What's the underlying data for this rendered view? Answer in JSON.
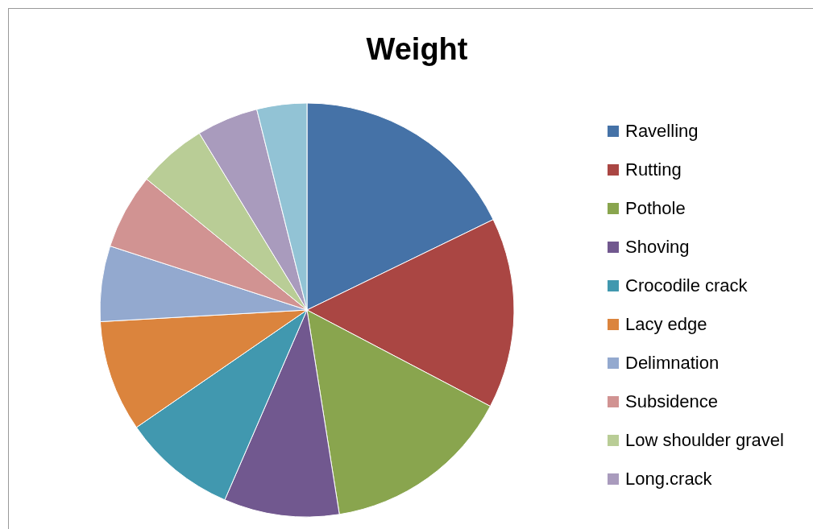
{
  "chart_data": {
    "type": "pie",
    "title": "Weight",
    "legend": "right",
    "categories": [
      "Ravelling",
      "Rutting",
      "Pothole",
      "Shoving",
      "Crocodile crack",
      "Lacy edge",
      "Delimnation",
      "Subsidence",
      "Low shoulder gravel",
      "Long.crack",
      null
    ],
    "values": [
      17.8,
      14.9,
      14.8,
      9.0,
      8.9,
      8.7,
      5.9,
      5.9,
      5.4,
      4.8,
      3.9
    ],
    "colors": [
      "#4572a7",
      "#aa4643",
      "#89a54e",
      "#71588f",
      "#4198af",
      "#db843d",
      "#93a9cf",
      "#d19392",
      "#b9cd96",
      "#a99bbd",
      "#92c3d5"
    ]
  }
}
